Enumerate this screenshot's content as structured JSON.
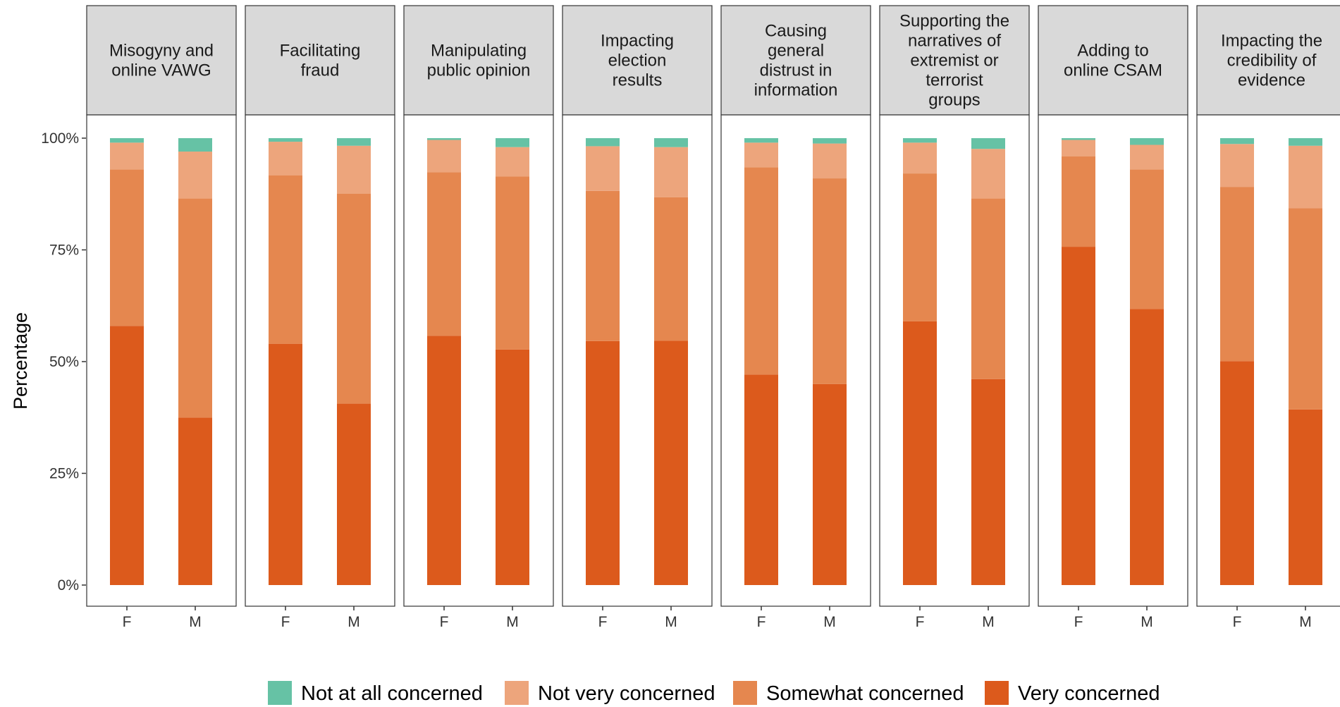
{
  "chart_data": {
    "type": "bar",
    "stacked": true,
    "ylabel": "Percentage",
    "xlabel": "",
    "ylim": [
      0,
      100
    ],
    "y_ticks": [
      "0%",
      "25%",
      "50%",
      "75%",
      "100%"
    ],
    "x_categories": [
      "F",
      "M"
    ],
    "grid": false,
    "legend_position": "bottom",
    "series_order_bottom_to_top": [
      "Very concerned",
      "Somewhat concerned",
      "Not very concerned",
      "Not at all concerned"
    ],
    "series": [
      {
        "name": "Not at all concerned",
        "color": "#66c2a5"
      },
      {
        "name": "Not very concerned",
        "color": "#eda57c"
      },
      {
        "name": "Somewhat concerned",
        "color": "#e5874f"
      },
      {
        "name": "Very concerned",
        "color": "#dc5a1c"
      }
    ],
    "panels": [
      {
        "title": [
          "Misogyny and",
          "online VAWG"
        ],
        "values": {
          "F": [
            58,
            35,
            6,
            1
          ],
          "M": [
            37.5,
            49,
            10.5,
            3
          ]
        }
      },
      {
        "title": [
          "Facilitating",
          "fraud"
        ],
        "values": {
          "F": [
            54,
            37.7,
            7.5,
            0.8
          ],
          "M": [
            40.6,
            47,
            10.7,
            1.7
          ]
        }
      },
      {
        "title": [
          "Manipulating",
          "public opinion"
        ],
        "values": {
          "F": [
            55.8,
            36.6,
            7.2,
            0.4
          ],
          "M": [
            52.7,
            38.7,
            6.6,
            2
          ]
        }
      },
      {
        "title": [
          "Impacting",
          "election",
          "results"
        ],
        "values": {
          "F": [
            54.6,
            33.6,
            10,
            1.8
          ],
          "M": [
            54.7,
            32.1,
            11.2,
            2
          ]
        }
      },
      {
        "title": [
          "Causing",
          "general",
          "distrust in",
          "information"
        ],
        "values": {
          "F": [
            47.1,
            46.4,
            5.5,
            1
          ],
          "M": [
            45,
            46,
            7.8,
            1.2
          ]
        }
      },
      {
        "title": [
          "Supporting the",
          "narratives of",
          "extremist or",
          "terrorist",
          "groups"
        ],
        "values": {
          "F": [
            59,
            33.1,
            6.9,
            1
          ],
          "M": [
            46.1,
            40.4,
            11.1,
            2.4
          ]
        }
      },
      {
        "title": [
          "Adding to",
          "online CSAM"
        ],
        "values": {
          "F": [
            75.7,
            20.2,
            3.7,
            0.4
          ],
          "M": [
            61.8,
            31.2,
            5.5,
            1.5
          ]
        }
      },
      {
        "title": [
          "Impacting the",
          "credibility of",
          "evidence"
        ],
        "values": {
          "F": [
            50.1,
            39,
            9.6,
            1.3
          ],
          "M": [
            39.3,
            45,
            14,
            1.7
          ]
        }
      }
    ]
  }
}
